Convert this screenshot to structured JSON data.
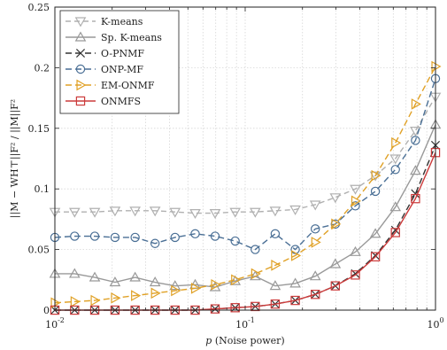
{
  "chart_data": {
    "type": "line",
    "title": "",
    "xlabel": "p (Noise power)",
    "xlabel_italic": "p",
    "xlabel_rest": " (Noise power)",
    "ylabel": "||M − WH⊤||F² / ||M||F²",
    "xscale": "log",
    "xlim": [
      0.01,
      1
    ],
    "ylim": [
      0,
      0.25
    ],
    "xticks": [
      {
        "value": 0.01,
        "base": "10",
        "exp": "-2"
      },
      {
        "value": 0.1,
        "base": "10",
        "exp": "-1"
      },
      {
        "value": 1,
        "base": "10",
        "exp": "0"
      }
    ],
    "yticks": [
      {
        "value": 0,
        "label": "0"
      },
      {
        "value": 0.05,
        "label": "0.05"
      },
      {
        "value": 0.1,
        "label": "0.1"
      },
      {
        "value": 0.15,
        "label": "0.15"
      },
      {
        "value": 0.2,
        "label": "0.2"
      },
      {
        "value": 0.25,
        "label": "0.25"
      }
    ],
    "grid": true,
    "legend_position": "top-left",
    "x": [
      0.01,
      0.0127,
      0.0162,
      0.0207,
      0.0264,
      0.0336,
      0.0428,
      0.0546,
      0.0695,
      0.0886,
      0.1129,
      0.1438,
      0.1833,
      0.2336,
      0.2976,
      0.3793,
      0.4833,
      0.6158,
      0.7848,
      1.0
    ],
    "series": [
      {
        "name": "K-means",
        "color": "#b0b0b0",
        "marker": "triangle-down",
        "dash": "6,4",
        "values": [
          0.081,
          0.081,
          0.081,
          0.082,
          0.082,
          0.082,
          0.081,
          0.08,
          0.08,
          0.081,
          0.081,
          0.082,
          0.083,
          0.087,
          0.093,
          0.1,
          0.111,
          0.125,
          0.148,
          0.176
        ]
      },
      {
        "name": "Sp. K-means",
        "color": "#999999",
        "marker": "triangle-up",
        "dash": "",
        "values": [
          0.03,
          0.03,
          0.027,
          0.023,
          0.027,
          0.023,
          0.02,
          0.021,
          0.019,
          0.024,
          0.028,
          0.02,
          0.022,
          0.028,
          0.038,
          0.048,
          0.063,
          0.085,
          0.115,
          0.153
        ]
      },
      {
        "name": "O-PNMF",
        "color": "#333333",
        "marker": "x",
        "dash": "7,4",
        "values": [
          0.0,
          0.0,
          0.0,
          0.0,
          0.0,
          0.0,
          0.0,
          0.0,
          0.001,
          0.002,
          0.003,
          0.005,
          0.008,
          0.013,
          0.02,
          0.03,
          0.045,
          0.066,
          0.096,
          0.136
        ]
      },
      {
        "name": "ONP-MF",
        "color": "#4a6f95",
        "marker": "circle",
        "dash": "7,4",
        "values": [
          0.06,
          0.061,
          0.061,
          0.06,
          0.06,
          0.055,
          0.06,
          0.063,
          0.061,
          0.057,
          0.05,
          0.063,
          0.05,
          0.067,
          0.071,
          0.086,
          0.098,
          0.116,
          0.14,
          0.191
        ]
      },
      {
        "name": "EM-ONMF",
        "color": "#e0a126",
        "marker": "triangle-right",
        "dash": "7,4",
        "values": [
          0.006,
          0.007,
          0.008,
          0.01,
          0.012,
          0.014,
          0.016,
          0.018,
          0.021,
          0.025,
          0.03,
          0.037,
          0.045,
          0.056,
          0.071,
          0.09,
          0.111,
          0.138,
          0.17,
          0.201
        ]
      },
      {
        "name": "ONMFS",
        "color": "#cc3b3b",
        "marker": "square",
        "dash": "",
        "values": [
          0.0,
          0.0,
          0.0,
          0.0,
          0.0,
          0.0,
          0.0,
          0.0,
          0.001,
          0.002,
          0.003,
          0.005,
          0.008,
          0.013,
          0.02,
          0.029,
          0.044,
          0.064,
          0.092,
          0.13
        ]
      }
    ]
  }
}
